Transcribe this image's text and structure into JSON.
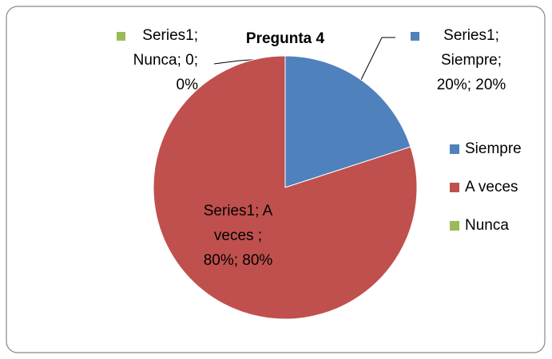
{
  "chart_data": {
    "type": "pie",
    "title": "Pregunta 4",
    "categories": [
      "Siempre",
      "A veces",
      "Nunca"
    ],
    "values": [
      20,
      80,
      0
    ],
    "value_labels": [
      "Series1;\nSiempre;\n20%; 20%",
      "Series1; A\nveces ;\n80%; 80%",
      "Series1;\nNunca; 0;\n0%"
    ],
    "colors": [
      "#4f81bd",
      "#c0504d",
      "#9bbb59"
    ],
    "legend": "right"
  }
}
